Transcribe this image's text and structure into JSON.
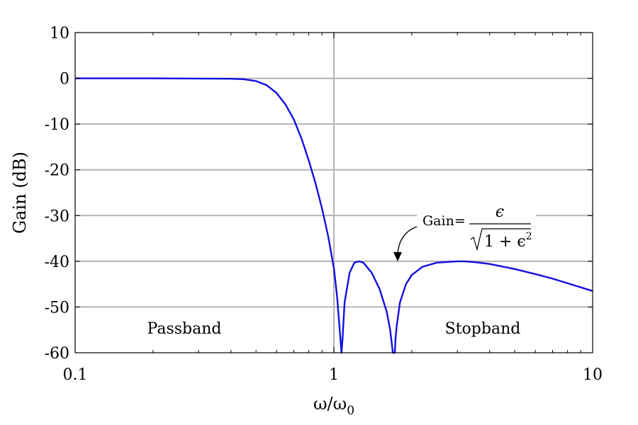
{
  "chart_data": {
    "type": "line",
    "xscale": "log",
    "xlim": [
      0.1,
      10
    ],
    "ylim": [
      -60,
      10
    ],
    "xlabel": "ω/ω",
    "xlabel_sub": "0",
    "ylabel": "Gain (dB)",
    "x_ticks": [
      {
        "value": 0.1,
        "label": "0.1"
      },
      {
        "value": 1,
        "label": "1"
      },
      {
        "value": 10,
        "label": "10"
      }
    ],
    "y_ticks": [
      {
        "value": 10,
        "label": "10"
      },
      {
        "value": 0,
        "label": "0"
      },
      {
        "value": -10,
        "label": "-10"
      },
      {
        "value": -20,
        "label": "-20"
      },
      {
        "value": -30,
        "label": "-30"
      },
      {
        "value": -40,
        "label": "-40"
      },
      {
        "value": -50,
        "label": "-50"
      },
      {
        "value": -60,
        "label": "-60"
      }
    ],
    "grid": {
      "horizontal": true,
      "vertical_at": [
        1
      ]
    },
    "series": [
      {
        "color": "#1010e0",
        "x": [
          0.1,
          0.2,
          0.3,
          0.4,
          0.45,
          0.5,
          0.55,
          0.6,
          0.65,
          0.7,
          0.75,
          0.8,
          0.85,
          0.9,
          0.95,
          1.0,
          1.03,
          1.06,
          1.07,
          1.08,
          1.1,
          1.15,
          1.2,
          1.25,
          1.3,
          1.4,
          1.5,
          1.6,
          1.65,
          1.69,
          1.72,
          1.73,
          1.75,
          1.8,
          1.9,
          2.0,
          2.2,
          2.5,
          3.0,
          3.2,
          3.5,
          4.0,
          5.0,
          6.0,
          7.0,
          8.0,
          10.0
        ],
        "y": [
          0,
          0,
          -0.05,
          -0.1,
          -0.2,
          -0.6,
          -1.5,
          -3.2,
          -5.7,
          -9.0,
          -13.2,
          -18.0,
          -23.0,
          -28.5,
          -34.5,
          -41.5,
          -48.0,
          -57.0,
          -60,
          -57.0,
          -49.0,
          -42.5,
          -40.3,
          -40.0,
          -40.3,
          -42.5,
          -46.0,
          -51.0,
          -55.0,
          -60,
          -60,
          -57.0,
          -54.0,
          -49.0,
          -45.0,
          -43.0,
          -41.2,
          -40.3,
          -40.0,
          -40.0,
          -40.2,
          -40.6,
          -41.7,
          -42.8,
          -43.8,
          -44.8,
          -46.5
        ]
      }
    ],
    "annotations": [
      {
        "text": "Passband",
        "x": 0.33,
        "y": -54
      },
      {
        "text": "Stopband",
        "x": 3.3,
        "y": -54
      },
      {
        "text": "Gain=",
        "formula_numerator": "ϵ",
        "formula_denominator": "1 + ϵ",
        "formula_exponent": "2",
        "x": 2.4,
        "y": -31
      }
    ]
  }
}
